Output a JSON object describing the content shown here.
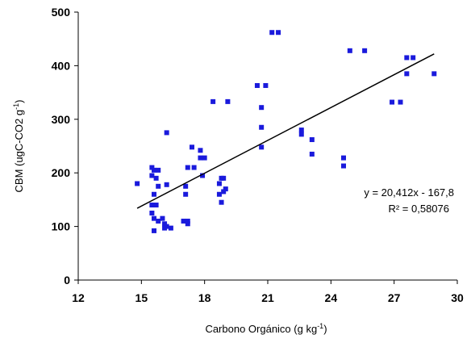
{
  "chart_data": {
    "type": "scatter",
    "x_label": {
      "text": "Carbono Orgánico (g kg",
      "sup": "-1",
      "end": ")"
    },
    "y_label": {
      "text": "CBM (ugC-CO2 g",
      "sup": "-1",
      "end": ")"
    },
    "xlim": [
      12,
      30
    ],
    "xticks": [
      12,
      15,
      18,
      21,
      24,
      27,
      30
    ],
    "ylim": [
      0,
      500
    ],
    "yticks": [
      0,
      100,
      200,
      300,
      400,
      500
    ],
    "grid": false,
    "series": [
      {
        "color": "#1a1adc",
        "x": [
          14.8,
          15.5,
          15.6,
          15.8,
          15.5,
          15.7,
          15.8,
          15.6,
          15.5,
          15.7,
          15.5,
          15.6,
          15.8,
          16.0,
          16.1,
          16.2,
          16.1,
          16.4,
          15.6,
          16.2,
          16.2,
          17.0,
          17.2,
          17.2,
          17.1,
          17.1,
          17.2,
          17.5,
          17.4,
          17.8,
          17.8,
          18.0,
          17.9,
          18.4,
          19.1,
          18.7,
          18.8,
          18.9,
          18.7,
          18.8,
          19.0,
          18.9,
          20.5,
          20.9,
          20.7,
          20.7,
          20.7,
          21.2,
          21.5,
          22.6,
          22.6,
          23.1,
          23.1,
          24.6,
          24.6,
          24.9,
          25.6,
          26.9,
          27.3,
          27.6,
          27.9,
          27.6,
          28.9
        ],
        "values": [
          180,
          210,
          205,
          205,
          195,
          190,
          175,
          160,
          140,
          140,
          125,
          115,
          110,
          115,
          105,
          100,
          97,
          97,
          92,
          275,
          178,
          110,
          105,
          110,
          160,
          175,
          210,
          210,
          248,
          242,
          228,
          228,
          195,
          333,
          333,
          180,
          190,
          190,
          160,
          145,
          170,
          165,
          363,
          363,
          322,
          285,
          248,
          462,
          462,
          280,
          272,
          262,
          235,
          228,
          213,
          428,
          428,
          332,
          332,
          415,
          415,
          385,
          385
        ]
      }
    ],
    "trendline": {
      "x": [
        14.8,
        28.9
      ],
      "values": [
        134,
        422
      ],
      "color": "#000000",
      "label": "y = 20,412x - 167,8",
      "r2_label": "R² = 0,58076"
    }
  }
}
